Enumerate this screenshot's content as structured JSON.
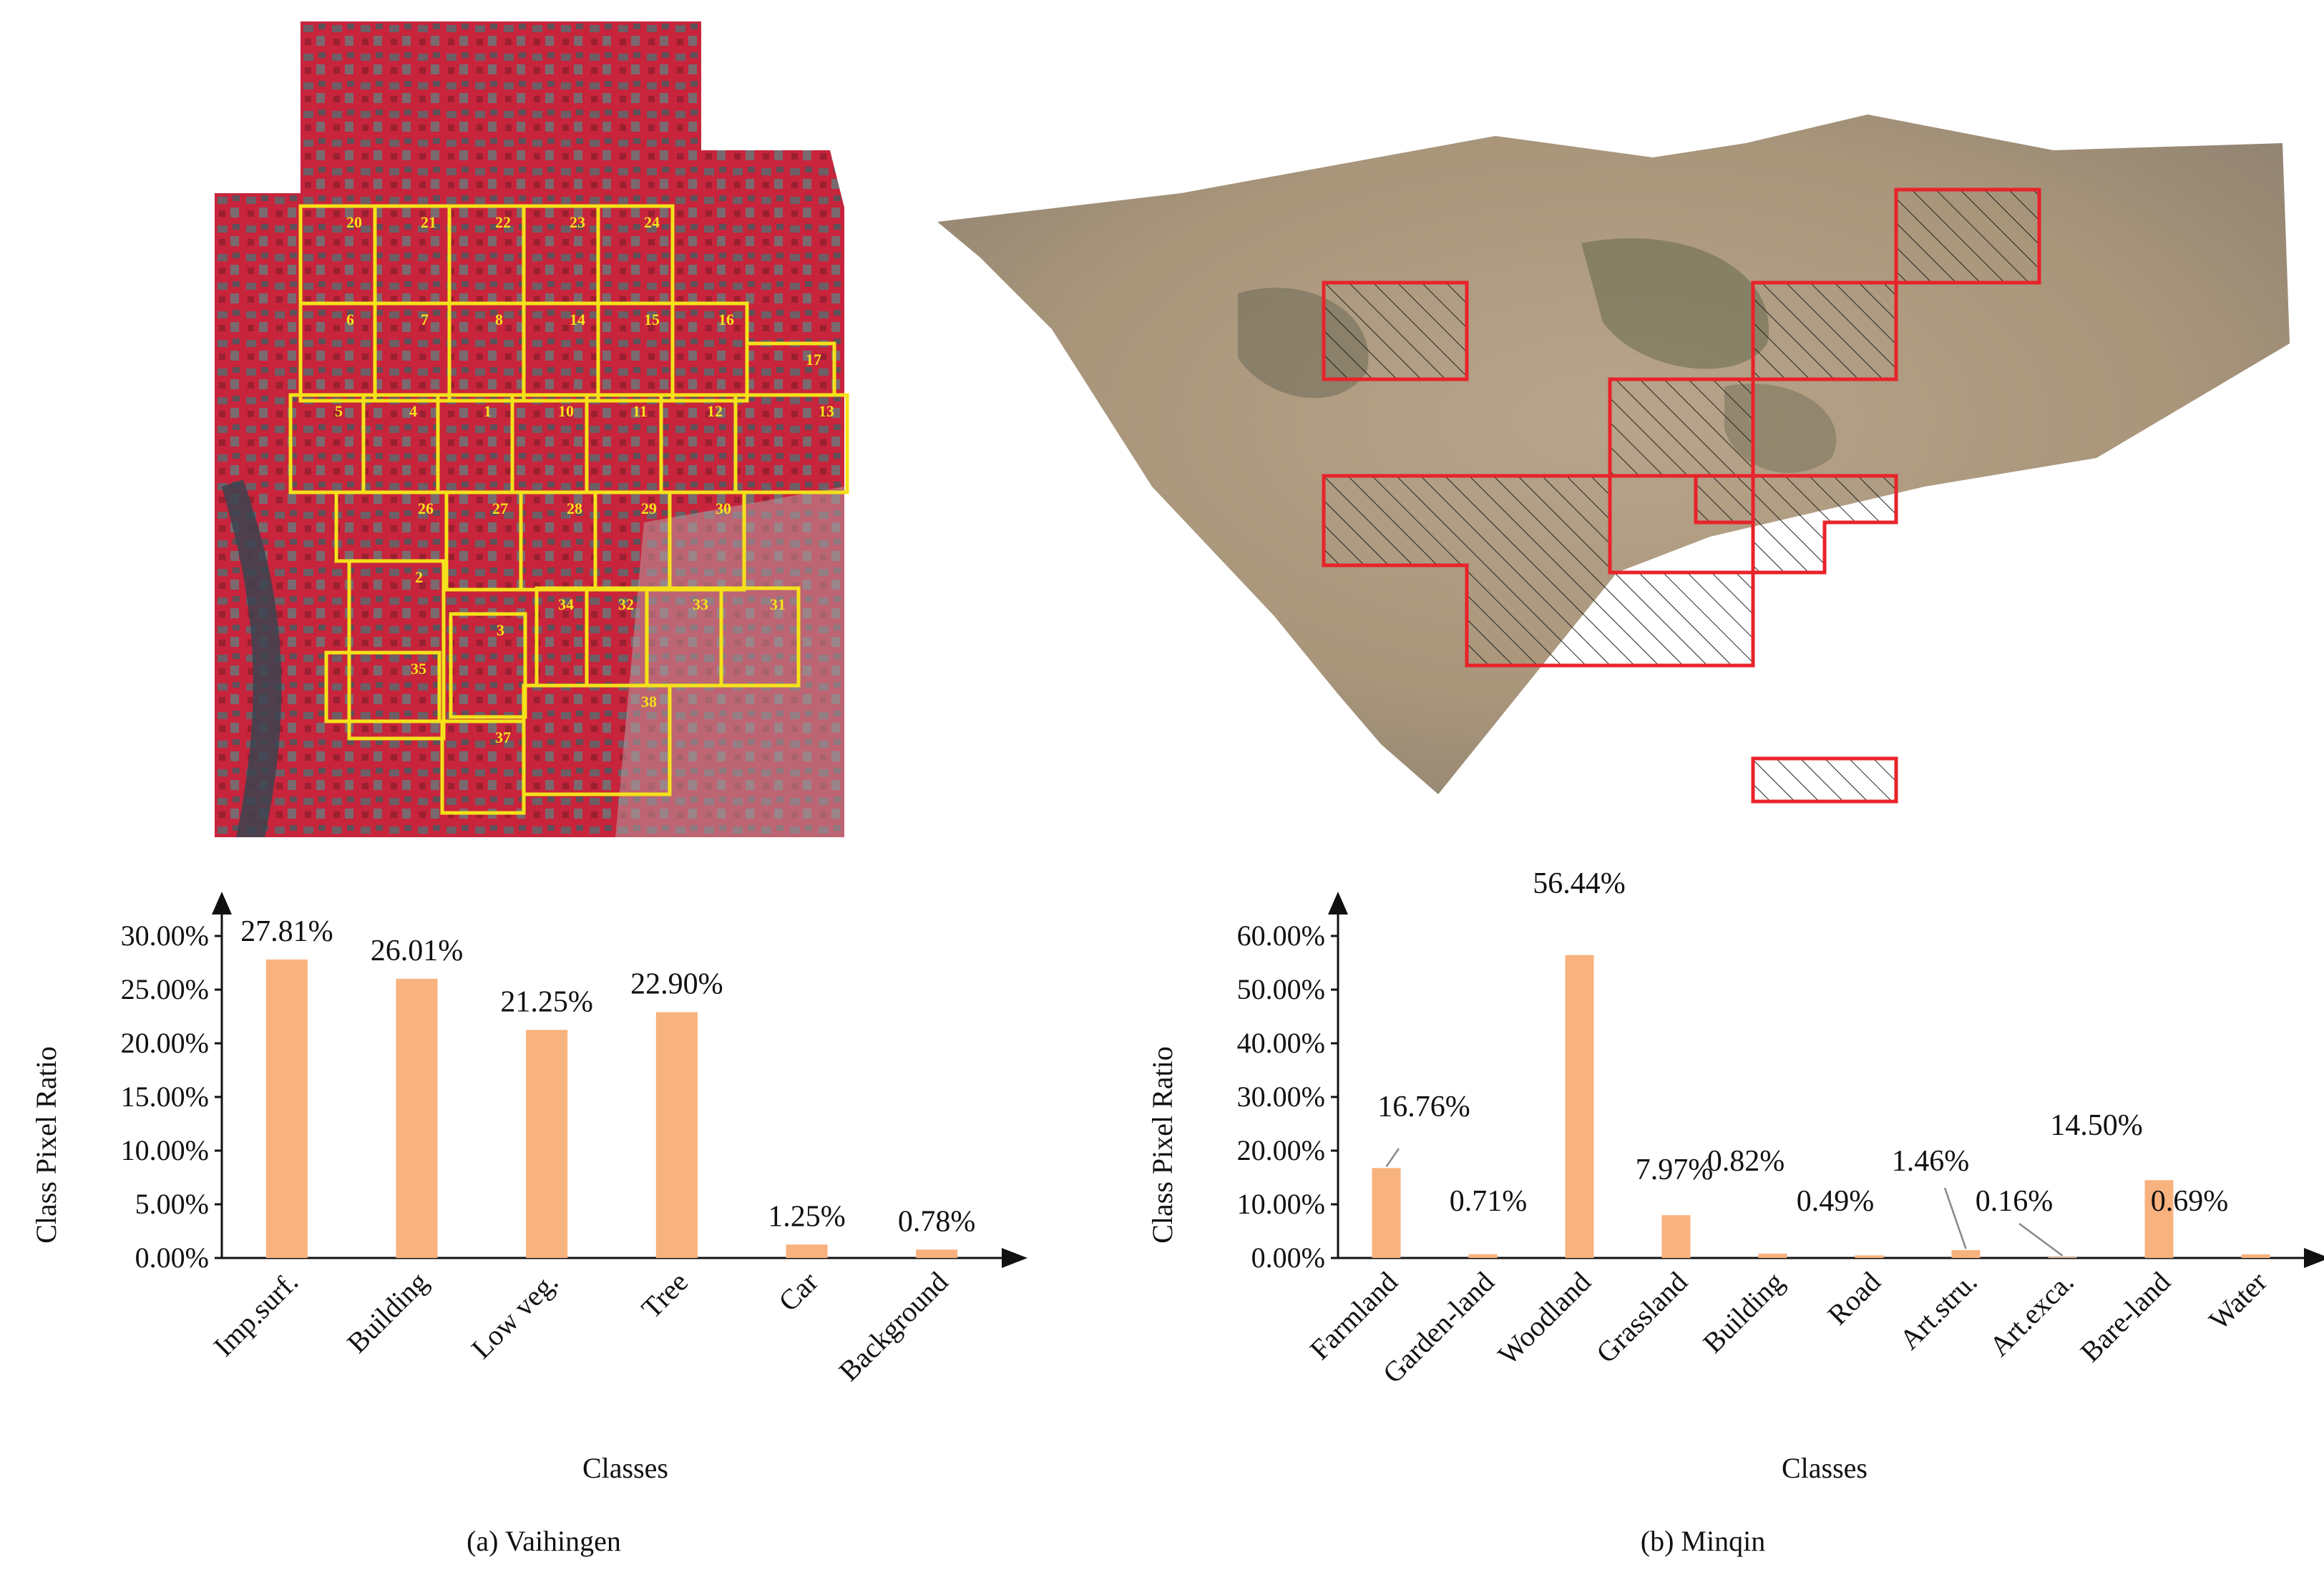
{
  "captions": {
    "a": "(a) Vaihingen",
    "b": "(b) Minqin"
  },
  "colors": {
    "bar": "#f8b27e",
    "vaihingen_grid": "#f5e21a",
    "minqin_grid": "#e8232a",
    "vaihingen_bg": "#c8243c",
    "minqin_bg": "#a8957a"
  },
  "vaihingen_tiles": [
    "20",
    "21",
    "22",
    "23",
    "24",
    "6",
    "7",
    "8",
    "14",
    "15",
    "16",
    "17",
    "5",
    "4",
    "1",
    "10",
    "11",
    "12",
    "13",
    "26",
    "27",
    "28",
    "29",
    "30",
    "34",
    "32",
    "33",
    "31",
    "3",
    "35",
    "38",
    "37",
    "2"
  ],
  "chart_data": [
    {
      "type": "bar",
      "categories": [
        "Imp.surf.",
        "Building",
        "Low veg.",
        "Tree",
        "Car",
        "Background"
      ],
      "values": [
        27.81,
        26.01,
        21.25,
        22.9,
        1.25,
        0.78
      ],
      "data_labels": [
        "27.81%",
        "26.01%",
        "21.25%",
        "22.90%",
        "1.25%",
        "0.78%"
      ],
      "yticks": [
        "0.00%",
        "5.00%",
        "10.00%",
        "15.00%",
        "20.00%",
        "25.00%",
        "30.00%"
      ],
      "ylim": [
        0,
        30
      ],
      "xlabel": "Classes",
      "ylabel": "Class Pixel Ratio",
      "grid": false
    },
    {
      "type": "bar",
      "categories": [
        "Farmland",
        "Garden-land",
        "Woodland",
        "Grassland",
        "Building",
        "Road",
        "Art.stru.",
        "Art.exca.",
        "Bare-land",
        "Water"
      ],
      "values": [
        16.76,
        0.71,
        56.44,
        7.97,
        0.82,
        0.49,
        1.46,
        0.16,
        14.5,
        0.69
      ],
      "data_labels": [
        "16.76%",
        "0.71%",
        "56.44%",
        "7.97%",
        "0.82%",
        "0.49%",
        "1.46%",
        "0.16%",
        "14.50%",
        "0.69%"
      ],
      "yticks": [
        "0.00%",
        "10.00%",
        "20.00%",
        "30.00%",
        "40.00%",
        "50.00%",
        "60.00%"
      ],
      "ylim": [
        0,
        60
      ],
      "xlabel": "Classes",
      "ylabel": "Class Pixel Ratio",
      "grid": false
    }
  ]
}
